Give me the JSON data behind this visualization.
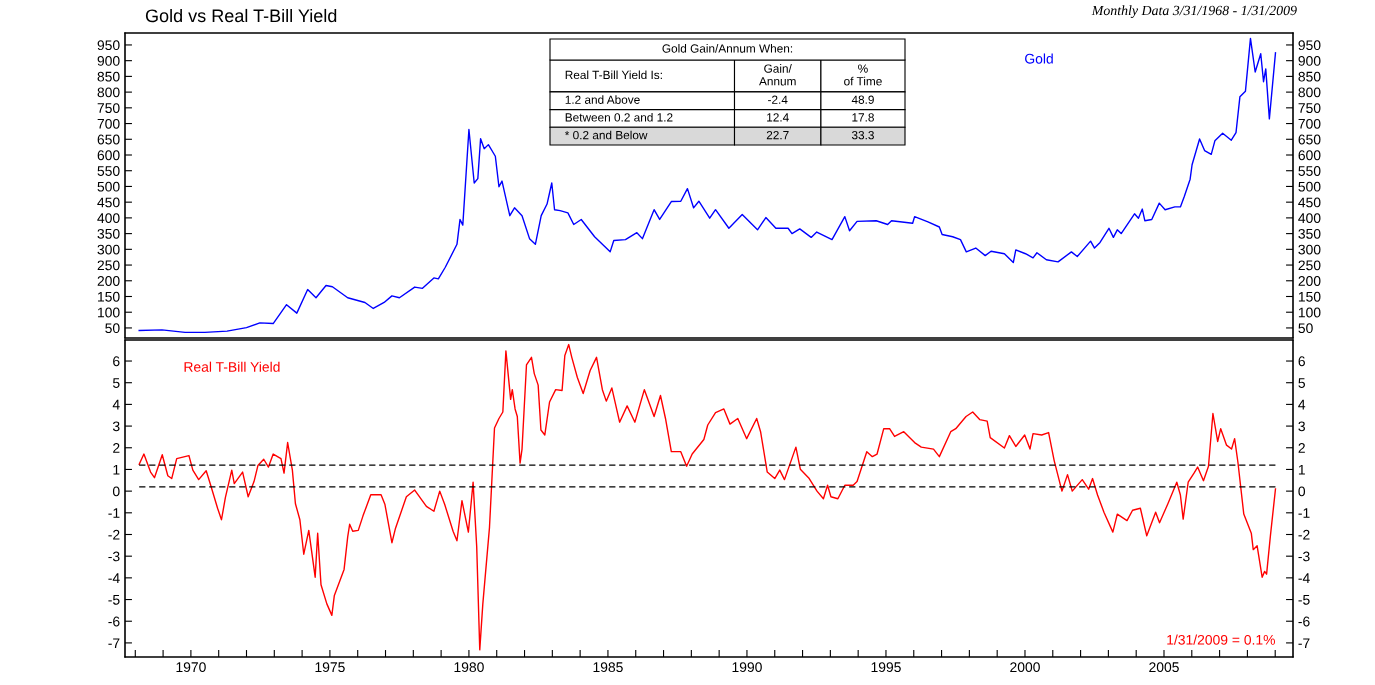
{
  "chart_data": [
    {
      "type": "line",
      "title": "Gold vs Real T-Bill Yield",
      "subtitle": "Monthly Data 3/31/1968 - 1/31/2009",
      "xlim": [
        1967.63,
        2009.64
      ],
      "ylim": [
        18,
        988
      ],
      "yticks": [
        50,
        100,
        150,
        200,
        250,
        300,
        350,
        400,
        450,
        500,
        550,
        600,
        650,
        700,
        750,
        800,
        850,
        900,
        950
      ],
      "y2lim": [
        18,
        988
      ],
      "y2ticks": [
        50,
        100,
        150,
        200,
        250,
        300,
        350,
        400,
        450,
        500,
        550,
        600,
        650,
        700,
        750,
        800,
        850,
        900,
        950
      ],
      "tick_labels": "y",
      "grid": false,
      "legend": false,
      "line_style": "solid",
      "marker": "none",
      "annotations": [
        "Gold Gain/Annum When:",
        "Real T-Bill Yield Is:",
        "Gain/\nAnnum",
        "%\nof Time",
        "1.2 and Above",
        "-2.4",
        "48.9",
        "Between 0.2 and 1.2",
        "12.4",
        "17.8",
        "* 0.2 and Below",
        "22.7",
        "33.3"
      ],
      "series": [
        {
          "name": "Gold",
          "color": "#0000ff",
          "x": [
            1968.14,
            1968.96,
            1969.79,
            1970.5,
            1971.3,
            1972.0,
            1972.48,
            1972.96,
            1973.44,
            1973.81,
            1974.2,
            1974.5,
            1974.86,
            1975.09,
            1975.64,
            1976.26,
            1976.56,
            1976.95,
            1977.23,
            1977.5,
            1978.05,
            1978.33,
            1978.74,
            1978.9,
            1979.15,
            1979.57,
            1979.68,
            1979.78,
            1980.0,
            1980.19,
            1980.32,
            1980.42,
            1980.55,
            1980.7,
            1980.95,
            1981.08,
            1981.19,
            1981.47,
            1981.64,
            1981.91,
            1982.18,
            1982.39,
            1982.6,
            1982.81,
            1982.98,
            1983.08,
            1983.28,
            1983.56,
            1983.77,
            1984.04,
            1984.52,
            1985.08,
            1985.21,
            1985.63,
            1986.04,
            1986.24,
            1986.66,
            1986.86,
            1987.28,
            1987.62,
            1987.86,
            1988.08,
            1988.27,
            1988.66,
            1988.87,
            1989.35,
            1989.83,
            1990.38,
            1990.68,
            1991.04,
            1991.48,
            1991.62,
            1991.9,
            1992.31,
            1992.51,
            1993.06,
            1993.52,
            1993.69,
            1993.96,
            1994.65,
            1995.06,
            1995.2,
            1995.96,
            1996.03,
            1996.51,
            1996.92,
            1997.02,
            1997.4,
            1997.68,
            1997.89,
            1998.23,
            1998.57,
            1998.78,
            1999.26,
            1999.58,
            1999.67,
            2000.02,
            2000.29,
            2000.43,
            2000.77,
            2001.19,
            2001.67,
            2001.88,
            2002.36,
            2002.5,
            2002.7,
            2003.02,
            2003.18,
            2003.32,
            2003.46,
            2003.94,
            2004.08,
            2004.22,
            2004.31,
            2004.56,
            2004.83,
            2005.04,
            2005.39,
            2005.59,
            2005.73,
            2005.94,
            2006.01,
            2006.28,
            2006.46,
            2006.7,
            2006.83,
            2007.11,
            2007.42,
            2007.59,
            2007.73,
            2007.93,
            2008.11,
            2008.28,
            2008.48,
            2008.58,
            2008.66,
            2008.79,
            2009.01
          ],
          "values": [
            42,
            44,
            36,
            36,
            40,
            51,
            66,
            64,
            124,
            97,
            172,
            146,
            185,
            181,
            146,
            131,
            112,
            131,
            152,
            146,
            180,
            176,
            209,
            206,
            243,
            316,
            395,
            377,
            681,
            511,
            525,
            652,
            620,
            633,
            596,
            499,
            517,
            407,
            432,
            407,
            334,
            316,
            407,
            444,
            511,
            426,
            423,
            416,
            379,
            395,
            340,
            292,
            328,
            331,
            353,
            334,
            426,
            395,
            452,
            453,
            493,
            432,
            453,
            399,
            426,
            367,
            411,
            362,
            401,
            367,
            367,
            350,
            365,
            338,
            355,
            331,
            404,
            359,
            389,
            391,
            379,
            391,
            383,
            404,
            387,
            371,
            347,
            340,
            331,
            292,
            304,
            280,
            294,
            286,
            258,
            298,
            286,
            273,
            289,
            267,
            260,
            292,
            277,
            326,
            304,
            322,
            367,
            338,
            362,
            350,
            413,
            399,
            428,
            391,
            395,
            447,
            426,
            435,
            435,
            468,
            523,
            569,
            651,
            614,
            602,
            645,
            669,
            647,
            671,
            785,
            803,
            971,
            864,
            922,
            833,
            874,
            715,
            925
          ]
        }
      ]
    },
    {
      "type": "line",
      "xlim": [
        1967.63,
        2009.64
      ],
      "xticks": [
        {
          "value": 1968,
          "label": null
        },
        {
          "value": 1969,
          "label": null
        },
        1970,
        {
          "value": 1971,
          "label": null
        },
        {
          "value": 1972,
          "label": null
        },
        {
          "value": 1973,
          "label": null
        },
        {
          "value": 1974,
          "label": null
        },
        1975,
        {
          "value": 1976,
          "label": null
        },
        {
          "value": 1977,
          "label": null
        },
        {
          "value": 1978,
          "label": null
        },
        {
          "value": 1979,
          "label": null
        },
        1980,
        {
          "value": 1981,
          "label": null
        },
        {
          "value": 1982,
          "label": null
        },
        {
          "value": 1983,
          "label": null
        },
        {
          "value": 1984,
          "label": null
        },
        1985,
        {
          "value": 1986,
          "label": null
        },
        {
          "value": 1987,
          "label": null
        },
        {
          "value": 1988,
          "label": null
        },
        {
          "value": 1989,
          "label": null
        },
        1990,
        {
          "value": 1991,
          "label": null
        },
        {
          "value": 1992,
          "label": null
        },
        {
          "value": 1993,
          "label": null
        },
        {
          "value": 1994,
          "label": null
        },
        1995,
        {
          "value": 1996,
          "label": null
        },
        {
          "value": 1997,
          "label": null
        },
        {
          "value": 1998,
          "label": null
        },
        {
          "value": 1999,
          "label": null
        },
        2000,
        {
          "value": 2001,
          "label": null
        },
        {
          "value": 2002,
          "label": null
        },
        {
          "value": 2003,
          "label": null
        },
        {
          "value": 2004,
          "label": null
        },
        2005,
        {
          "value": 2006,
          "label": null
        },
        {
          "value": 2007,
          "label": null
        },
        {
          "value": 2008,
          "label": null
        },
        {
          "value": 2009,
          "label": null
        }
      ],
      "ylim": [
        -7.65,
        6.97
      ],
      "yticks": [
        -7,
        -6,
        -5,
        -4,
        -3,
        -2,
        -1,
        0,
        1,
        2,
        3,
        4,
        5,
        6
      ],
      "y2lim": [
        -7.65,
        6.97
      ],
      "y2ticks": [
        -7,
        -6,
        -5,
        -4,
        -3,
        -2,
        -1,
        0,
        1,
        2,
        3,
        4,
        5,
        6
      ],
      "grid": false,
      "legend": false,
      "line_style": "solid",
      "marker": "none",
      "ref_lines": [
        {
          "axis": "y",
          "value": 1.2,
          "label": null,
          "color": "#000000",
          "line_style": "dashed"
        },
        {
          "axis": "y",
          "value": 0.2,
          "label": null,
          "color": "#000000",
          "line_style": "dashed"
        }
      ],
      "annotations": [
        "1/31/2009 = 0.1%"
      ],
      "series": [
        {
          "name": "Real T-Bill Yield",
          "color": "#ff0000",
          "x": [
            1968.14,
            1968.31,
            1968.55,
            1968.69,
            1968.97,
            1969.17,
            1969.31,
            1969.49,
            1969.93,
            1970.07,
            1970.28,
            1970.55,
            1970.69,
            1970.96,
            1971.1,
            1971.24,
            1971.47,
            1971.56,
            1971.86,
            1972.06,
            1972.27,
            1972.41,
            1972.62,
            1972.79,
            1972.96,
            1973.24,
            1973.35,
            1973.48,
            1973.65,
            1973.76,
            1973.92,
            1974.06,
            1974.24,
            1974.47,
            1974.56,
            1974.68,
            1974.89,
            1975.07,
            1975.16,
            1975.51,
            1975.64,
            1975.71,
            1975.82,
            1976.02,
            1976.19,
            1976.47,
            1976.84,
            1976.98,
            1977.23,
            1977.36,
            1977.75,
            1978.05,
            1978.47,
            1978.74,
            1978.95,
            1979.13,
            1979.43,
            1979.57,
            1979.75,
            1979.98,
            1980.15,
            1980.28,
            1980.39,
            1980.5,
            1980.74,
            1980.92,
            1981.08,
            1981.22,
            1981.33,
            1981.5,
            1981.56,
            1981.66,
            1981.74,
            1981.84,
            1981.91,
            1982.07,
            1982.25,
            1982.35,
            1982.49,
            1982.59,
            1982.73,
            1982.9,
            1983.12,
            1983.35,
            1983.45,
            1983.59,
            1983.7,
            1983.9,
            1984.11,
            1984.36,
            1984.59,
            1984.8,
            1984.94,
            1985.14,
            1985.42,
            1985.69,
            1985.97,
            1986.31,
            1986.66,
            1986.89,
            1987.07,
            1987.28,
            1987.62,
            1987.83,
            1988.03,
            1988.45,
            1988.59,
            1988.87,
            1989.17,
            1989.39,
            1989.67,
            1989.99,
            1990.35,
            1990.49,
            1990.73,
            1991.0,
            1991.18,
            1991.35,
            1991.76,
            1991.92,
            1992.24,
            1992.52,
            1992.75,
            1992.9,
            1993.02,
            1993.27,
            1993.52,
            1993.82,
            1993.96,
            1994.31,
            1994.51,
            1994.68,
            1994.92,
            1995.13,
            1995.31,
            1995.64,
            1996.03,
            1996.27,
            1996.71,
            1996.92,
            1997.33,
            1997.51,
            1997.88,
            1998.12,
            1998.37,
            1998.64,
            1998.75,
            1999.26,
            1999.44,
            1999.67,
            1999.99,
            2000.18,
            2000.29,
            2000.6,
            2000.85,
            2001.05,
            2001.33,
            2001.53,
            2001.7,
            2002.06,
            2002.29,
            2002.43,
            2002.61,
            2002.84,
            2003.16,
            2003.32,
            2003.67,
            2003.87,
            2004.15,
            2004.38,
            2004.7,
            2004.84,
            2005.14,
            2005.46,
            2005.59,
            2005.69,
            2005.87,
            2006.08,
            2006.21,
            2006.42,
            2006.6,
            2006.76,
            2006.93,
            2007.04,
            2007.25,
            2007.43,
            2007.54,
            2007.66,
            2007.87,
            2008.14,
            2008.21,
            2008.35,
            2008.53,
            2008.62,
            2008.69,
            2008.83,
            2009.01
          ],
          "values": [
            1.24,
            1.71,
            0.88,
            0.62,
            1.68,
            0.71,
            0.58,
            1.5,
            1.64,
            0.97,
            0.53,
            0.94,
            0.36,
            -0.79,
            -1.32,
            -0.3,
            0.97,
            0.35,
            0.88,
            -0.26,
            0.44,
            1.18,
            1.47,
            1.11,
            1.71,
            1.5,
            0.83,
            2.24,
            0.97,
            -0.58,
            -1.32,
            -2.91,
            -1.81,
            -3.97,
            -1.94,
            -4.32,
            -5.2,
            -5.73,
            -4.81,
            -3.61,
            -2.11,
            -1.53,
            -1.85,
            -1.81,
            -1.14,
            -0.17,
            -0.17,
            -0.62,
            -2.38,
            -1.71,
            -0.26,
            0.05,
            -0.7,
            -0.93,
            0.0,
            -0.62,
            -1.85,
            -2.29,
            -0.44,
            -1.89,
            0.41,
            -2.56,
            -7.32,
            -5.2,
            -1.67,
            2.91,
            3.35,
            3.65,
            6.47,
            4.23,
            4.68,
            3.79,
            3.44,
            1.29,
            1.94,
            5.82,
            6.17,
            5.42,
            4.89,
            2.82,
            2.59,
            4.11,
            4.68,
            4.64,
            6.26,
            6.76,
            6.17,
            5.24,
            4.5,
            5.56,
            6.17,
            4.68,
            4.15,
            4.76,
            3.18,
            3.93,
            3.18,
            4.68,
            3.44,
            4.41,
            3.35,
            1.82,
            1.82,
            1.15,
            1.71,
            2.38,
            3.05,
            3.62,
            3.79,
            3.09,
            3.35,
            2.42,
            3.35,
            2.74,
            0.88,
            0.58,
            0.97,
            0.53,
            2.03,
            1.01,
            0.58,
            0.0,
            -0.35,
            0.27,
            -0.26,
            -0.35,
            0.27,
            0.27,
            0.44,
            1.82,
            1.59,
            1.71,
            2.88,
            2.88,
            2.52,
            2.74,
            2.24,
            2.03,
            1.94,
            1.59,
            2.74,
            2.88,
            3.44,
            3.65,
            3.3,
            3.23,
            2.47,
            1.99,
            2.56,
            2.06,
            2.59,
            1.94,
            2.65,
            2.59,
            2.7,
            1.41,
            0.0,
            0.76,
            0.0,
            0.53,
            0.09,
            0.58,
            -0.18,
            -0.97,
            -1.89,
            -1.06,
            -1.36,
            -0.88,
            -0.79,
            -2.06,
            -0.97,
            -1.46,
            -0.58,
            0.41,
            -0.18,
            -1.29,
            0.41,
            0.83,
            1.11,
            0.48,
            1.15,
            3.58,
            2.29,
            2.88,
            2.12,
            1.94,
            2.42,
            1.32,
            -1.06,
            -1.94,
            -2.7,
            -2.52,
            -3.97,
            -3.7,
            -3.83,
            -2.03,
            0.1
          ]
        }
      ]
    }
  ]
}
